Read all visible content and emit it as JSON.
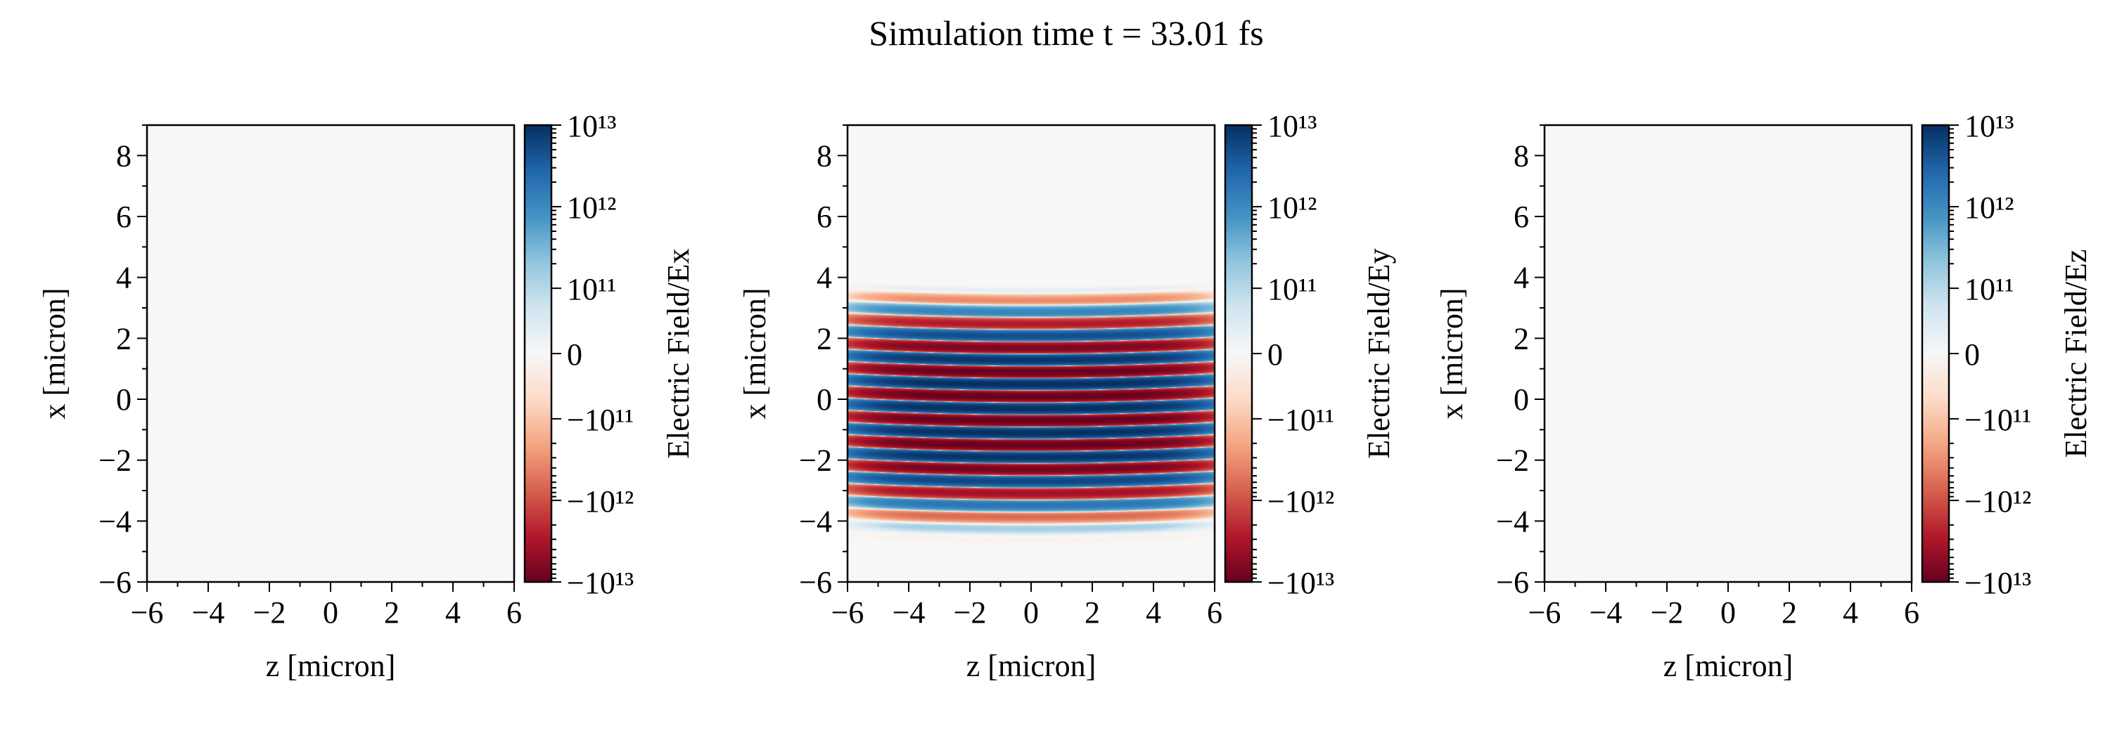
{
  "title": "Simulation time t = 33.01 fs",
  "chart_data": [
    {
      "type": "heatmap",
      "xlabel": "z [micron]",
      "ylabel": "x [micron]",
      "xlim": [
        -6,
        6
      ],
      "ylim": [
        -6,
        9
      ],
      "xticks": [
        "−6",
        "−4",
        "−2",
        "0",
        "2",
        "4",
        "6"
      ],
      "yticks": [
        "−6",
        "−4",
        "−2",
        "0",
        "2",
        "4",
        "6",
        "8"
      ],
      "colorbar_label": "Electric Field/Ex",
      "colorbar_ticks": [
        "−10¹³",
        "−10¹²",
        "−10¹¹",
        "0",
        "10¹¹",
        "10¹²",
        "10¹³"
      ],
      "colorbar_scale": "symlog",
      "colormap": "RdBu_r",
      "field": "zero everywhere"
    },
    {
      "type": "heatmap",
      "xlabel": "z [micron]",
      "ylabel": "x [micron]",
      "xlim": [
        -6,
        6
      ],
      "ylim": [
        -6,
        9
      ],
      "xticks": [
        "−6",
        "−4",
        "−2",
        "0",
        "2",
        "4",
        "6"
      ],
      "yticks": [
        "−6",
        "−4",
        "−2",
        "0",
        "2",
        "4",
        "6",
        "8"
      ],
      "colorbar_label": "Electric Field/Ey",
      "colorbar_ticks": [
        "−10¹³",
        "−10¹²",
        "−10¹¹",
        "0",
        "10¹¹",
        "10¹²",
        "10¹³"
      ],
      "colorbar_scale": "symlog",
      "colormap": "RdBu_r",
      "field": "laser pulse: alternating red/blue curved stripes, x from about -4.6 to 3.6 micron, peak about ±1e13 near center"
    },
    {
      "type": "heatmap",
      "xlabel": "z [micron]",
      "ylabel": "x [micron]",
      "xlim": [
        -6,
        6
      ],
      "ylim": [
        -6,
        9
      ],
      "xticks": [
        "−6",
        "−4",
        "−2",
        "0",
        "2",
        "4",
        "6"
      ],
      "yticks": [
        "−6",
        "−4",
        "−2",
        "0",
        "2",
        "4",
        "6",
        "8"
      ],
      "colorbar_label": "Electric Field/Ez",
      "colorbar_ticks": [
        "−10¹³",
        "−10¹²",
        "−10¹¹",
        "0",
        "10¹¹",
        "10¹²",
        "10¹³"
      ],
      "colorbar_scale": "symlog",
      "colormap": "RdBu_r",
      "field": "zero everywhere"
    }
  ],
  "colors": {
    "neg_max": "#67001f",
    "zero": "#f7f7f7",
    "pos_max": "#053061"
  }
}
